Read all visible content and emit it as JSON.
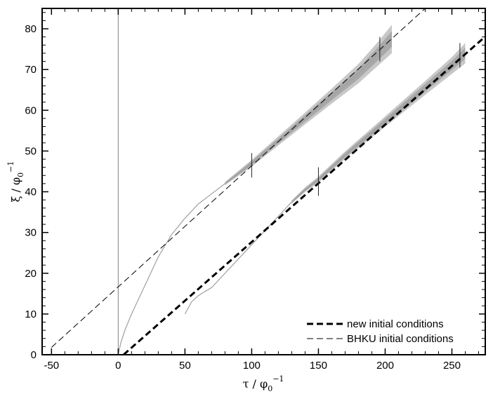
{
  "chart_data": {
    "type": "line",
    "xlabel": {
      "base": "τ / φ",
      "sub": "0",
      "sup": "−1"
    },
    "ylabel": {
      "base": "ξ / φ",
      "sub": "0",
      "sup": "−1"
    },
    "xlim": [
      -57,
      275
    ],
    "ylim": [
      0,
      85
    ],
    "xticks": [
      -50,
      0,
      50,
      100,
      150,
      200,
      250
    ],
    "yticks": [
      0,
      10,
      20,
      30,
      40,
      50,
      60,
      70,
      80
    ],
    "grid": false,
    "legend_position": "bottom-right",
    "vertical_reference_line": {
      "x": 0
    },
    "series": [
      {
        "name": "new initial conditions",
        "style": "thick-dashed",
        "color": "#000000",
        "x": [
          4,
          275
        ],
        "y": [
          0,
          78.1
        ]
      },
      {
        "name": "BHKU initial conditions",
        "style": "thin-dashed",
        "color": "#000000",
        "x": [
          -50,
          230
        ],
        "y": [
          1.8,
          85
        ]
      }
    ],
    "measured_curves": [
      {
        "id": "upper-curve",
        "color": "#a0a0a0",
        "x": [
          0,
          2,
          5,
          10,
          15,
          20,
          25,
          30,
          40,
          50,
          60,
          70,
          80,
          90,
          100,
          120,
          140,
          160,
          180,
          195,
          205
        ],
        "y": [
          0,
          3,
          6,
          10,
          13.5,
          17,
          20.5,
          24,
          29.5,
          33.5,
          37,
          39.5,
          42,
          44.5,
          47,
          52.5,
          58,
          63.5,
          69,
          74,
          77.5
        ],
        "band_from_x": 80,
        "band_width": [
          0.4,
          0.6,
          0.8,
          1.0,
          1.3,
          1.6,
          2.0,
          2.5,
          3.0,
          3.5
        ]
      },
      {
        "id": "lower-curve",
        "color": "#a0a0a0",
        "x": [
          50,
          55,
          60,
          65,
          70,
          80,
          90,
          100,
          110,
          120,
          130,
          140,
          150,
          170,
          190,
          210,
          230,
          250,
          260
        ],
        "y": [
          10,
          13,
          14.5,
          15.5,
          16.5,
          20,
          23.5,
          27,
          30.5,
          34,
          37.5,
          40.5,
          43,
          49,
          54.5,
          60,
          65.5,
          71,
          74
        ],
        "band_from_x": 130,
        "band_width": [
          0.4,
          0.6,
          0.8,
          1.0,
          1.3,
          1.6,
          2.0,
          2.5
        ]
      }
    ],
    "error_bars": [
      {
        "x": 100,
        "y": 46.5,
        "half": 3
      },
      {
        "x": 150,
        "y": 42.5,
        "half": 3.5
      },
      {
        "x": 196,
        "y": 75,
        "half": 3
      },
      {
        "x": 256,
        "y": 73.5,
        "half": 3
      }
    ]
  }
}
